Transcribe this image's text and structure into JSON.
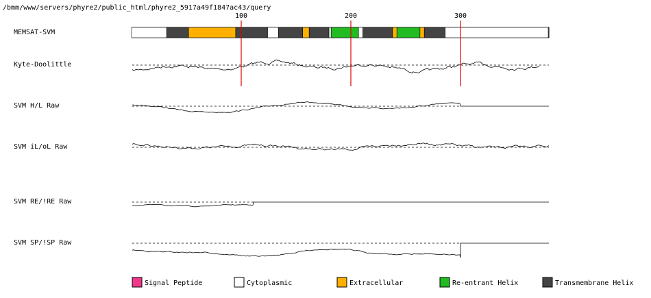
{
  "path": "/bmm/www/servers/phyre2/public_html/phyre2_5917a49f1847ac43/query",
  "ticks": [
    100,
    200,
    300
  ],
  "tracks": [
    "MEMSAT-SVM",
    "Kyte-Doolittle",
    "SVM H/L Raw",
    "SVM iL/oL Raw",
    "SVM RE/!RE Raw",
    "SVM SP/!SP Raw"
  ],
  "legend": [
    {
      "label": "Signal Peptide",
      "color": "#f0388a",
      "segments": []
    },
    {
      "label": "Cytoplasmic",
      "color": "#ffffff",
      "segments": [
        [
          0,
          32
        ],
        [
          124,
          134
        ],
        [
          180,
          182
        ],
        [
          207,
          211
        ],
        [
          286,
          380
        ]
      ]
    },
    {
      "label": "Extracellular",
      "color": "#ffb000",
      "segments": [
        [
          52,
          95
        ],
        [
          156,
          162
        ],
        [
          238,
          242
        ],
        [
          263,
          267
        ]
      ]
    },
    {
      "label": "Re-entrant Helix",
      "color": "#22bb22",
      "segments": [
        [
          182,
          207
        ],
        [
          242,
          263
        ]
      ]
    },
    {
      "label": "Transmembrane Helix",
      "color": "#444444",
      "segments": [
        [
          32,
          52
        ],
        [
          95,
          124
        ],
        [
          134,
          156
        ],
        [
          162,
          180
        ],
        [
          211,
          238
        ],
        [
          267,
          286
        ]
      ]
    }
  ]
}
